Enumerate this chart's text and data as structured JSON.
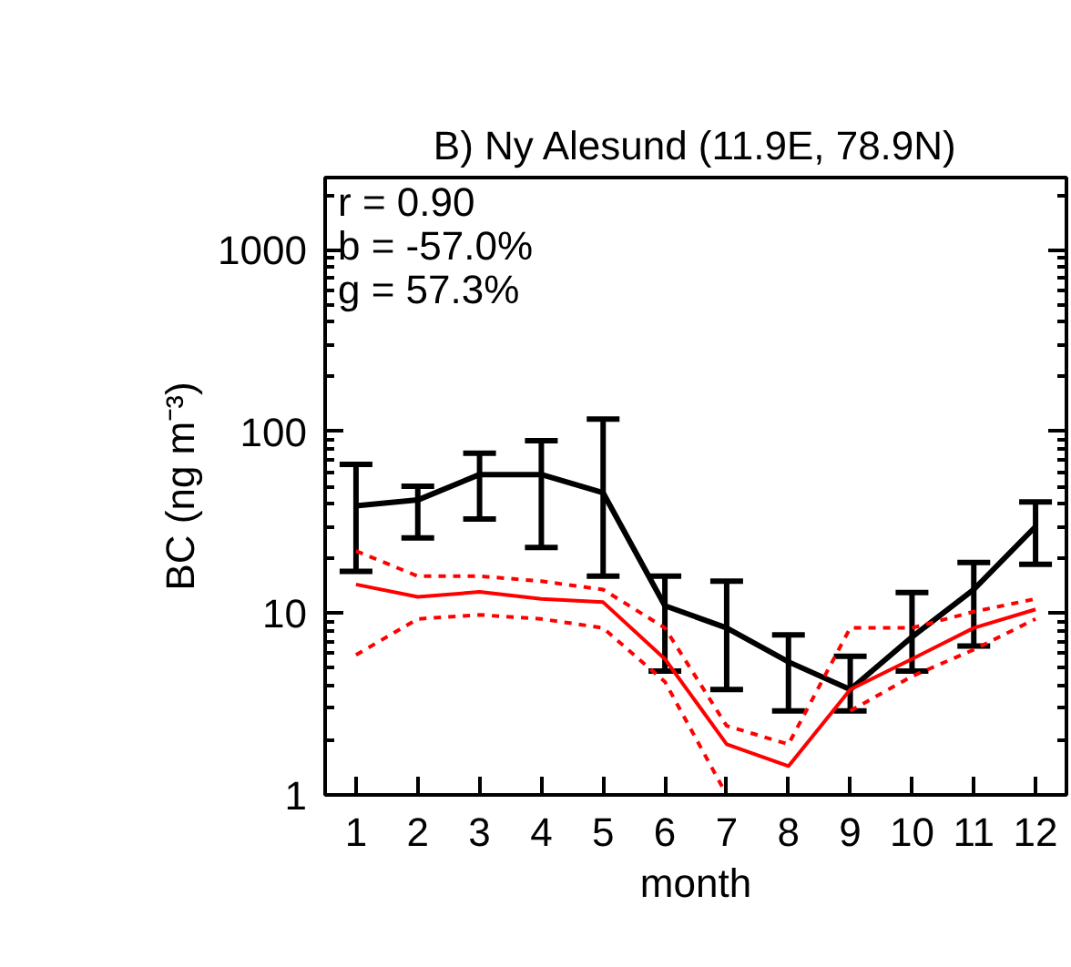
{
  "chart_data": {
    "type": "line",
    "title": "B) Ny Alesund (11.9E, 78.9N)",
    "xlabel": "month",
    "ylabel": "BC (ng m⁻³)",
    "x": [
      1,
      2,
      3,
      4,
      5,
      6,
      7,
      8,
      9,
      10,
      11,
      12
    ],
    "series": [
      {
        "color": "#000000",
        "values": [
          39,
          42,
          58,
          58,
          46,
          11,
          8.3,
          5.4,
          3.8,
          7.4,
          13.5,
          30
        ],
        "errors": [
          [
            17,
            66
          ],
          [
            26,
            50
          ],
          [
            33,
            76
          ],
          [
            23,
            89
          ],
          [
            16,
            117
          ],
          [
            4.8,
            16
          ],
          [
            3.8,
            15
          ],
          [
            2.9,
            7.6
          ],
          [
            2.9,
            5.8
          ],
          [
            4.8,
            13
          ],
          [
            6.6,
            19
          ],
          [
            18.6,
            41
          ]
        ]
      },
      {
        "color": "#ff0000",
        "values": [
          14.4,
          12.3,
          13.1,
          12,
          11.5,
          5.6,
          1.9,
          1.44,
          3.8,
          5.6,
          8.3,
          10.5
        ]
      },
      {
        "color": "#ff0000",
        "line_style": "dashed",
        "values": [
          22,
          16,
          16,
          15,
          13.5,
          8.3,
          2.4,
          1.9,
          8.3,
          8.3,
          10.2,
          12
        ]
      },
      {
        "color": "#ff0000",
        "line_style": "dashed",
        "values": [
          5.9,
          9.3,
          9.8,
          9.3,
          8.3,
          4.2,
          1.0,
          null,
          2.9,
          4.5,
          6.3,
          9.3
        ]
      }
    ],
    "log": "y",
    "xlim": [
      0.5,
      12.5
    ],
    "ylim": [
      1,
      2500
    ],
    "xticks": [
      1,
      2,
      3,
      4,
      5,
      6,
      7,
      8,
      9,
      10,
      11,
      12
    ],
    "yticks": [
      1,
      10,
      100,
      1000
    ],
    "grid": false,
    "marker": "none",
    "line_style": "solid",
    "annotations": [
      "r = 0.90",
      "b = -57.0%",
      "g = 57.3%"
    ]
  }
}
